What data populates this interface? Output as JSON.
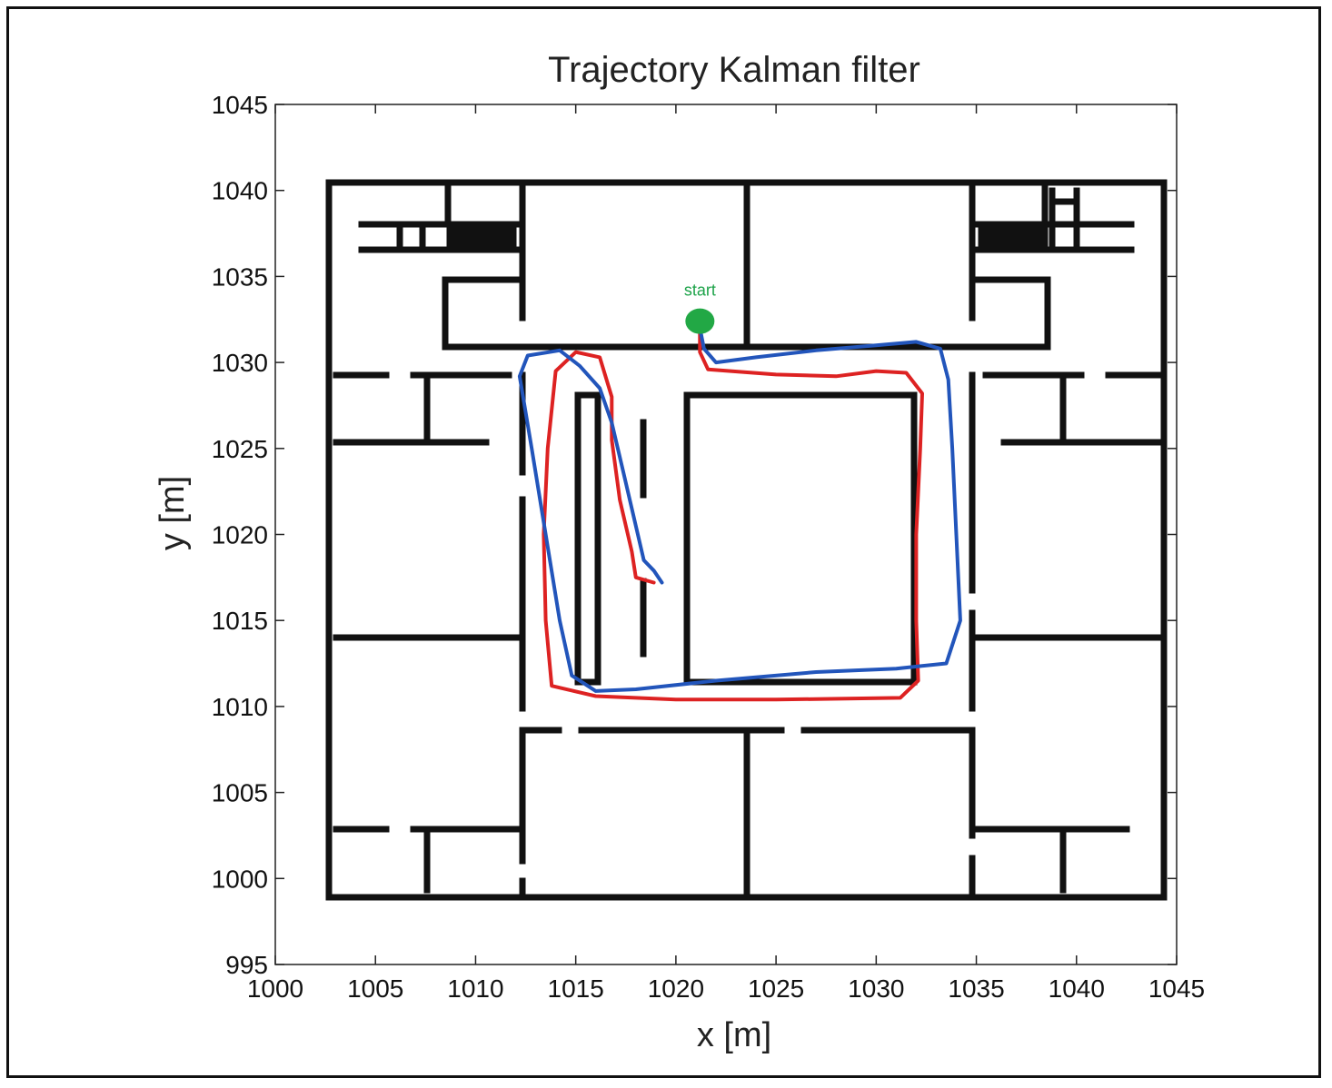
{
  "chart_data": {
    "type": "line",
    "title": "Trajectory Kalman filter",
    "xlabel": "x [m]",
    "ylabel": "y [m]",
    "xlim": [
      1000,
      1045
    ],
    "ylim": [
      995,
      1045
    ],
    "xticks": [
      1000,
      1005,
      1010,
      1015,
      1020,
      1025,
      1030,
      1035,
      1040,
      1045
    ],
    "yticks": [
      995,
      1000,
      1005,
      1010,
      1015,
      1020,
      1025,
      1030,
      1035,
      1040,
      1045
    ],
    "grid": false,
    "annotations": [
      {
        "text": "start",
        "x": 1021.2,
        "y": 1032.4
      }
    ],
    "start_point": {
      "x": 1021.2,
      "y": 1032.4,
      "color": "#22a845"
    },
    "series": [
      {
        "color": "#dd2222",
        "points": [
          [
            1021.2,
            1032.1
          ],
          [
            1021.2,
            1030.6
          ],
          [
            1021.6,
            1029.6
          ],
          [
            1025,
            1029.3
          ],
          [
            1028,
            1029.2
          ],
          [
            1030,
            1029.5
          ],
          [
            1031.5,
            1029.4
          ],
          [
            1032.3,
            1028.2
          ],
          [
            1032.2,
            1025
          ],
          [
            1032.0,
            1020
          ],
          [
            1032.0,
            1015
          ],
          [
            1032.1,
            1011.5
          ],
          [
            1031.2,
            1010.5
          ],
          [
            1025,
            1010.4
          ],
          [
            1020,
            1010.4
          ],
          [
            1016,
            1010.6
          ],
          [
            1013.8,
            1011.2
          ],
          [
            1013.5,
            1015
          ],
          [
            1013.4,
            1020
          ],
          [
            1013.6,
            1025
          ],
          [
            1014,
            1029.5
          ],
          [
            1015,
            1030.6
          ],
          [
            1016.2,
            1030.3
          ],
          [
            1016.8,
            1028.0
          ],
          [
            1016.8,
            1025.5
          ],
          [
            1017.2,
            1022
          ],
          [
            1017.8,
            1019
          ],
          [
            1018,
            1017.5
          ],
          [
            1018.9,
            1017.2
          ]
        ]
      },
      {
        "color": "#2255bb",
        "points": [
          [
            1021.2,
            1032.0
          ],
          [
            1021.4,
            1030.8
          ],
          [
            1022.0,
            1030.0
          ],
          [
            1024,
            1030.3
          ],
          [
            1027,
            1030.7
          ],
          [
            1030,
            1031.0
          ],
          [
            1032,
            1031.2
          ],
          [
            1033.2,
            1030.8
          ],
          [
            1033.6,
            1029
          ],
          [
            1033.8,
            1025
          ],
          [
            1034.0,
            1020
          ],
          [
            1034.2,
            1015
          ],
          [
            1033.5,
            1012.5
          ],
          [
            1031,
            1012.2
          ],
          [
            1027,
            1012.0
          ],
          [
            1022,
            1011.5
          ],
          [
            1018,
            1011
          ],
          [
            1016,
            1010.9
          ],
          [
            1014.8,
            1011.8
          ],
          [
            1014.2,
            1015
          ],
          [
            1013.5,
            1020
          ],
          [
            1012.8,
            1025
          ],
          [
            1012.2,
            1029.2
          ],
          [
            1012.6,
            1030.4
          ],
          [
            1014.2,
            1030.7
          ],
          [
            1015.2,
            1029.8
          ],
          [
            1016.2,
            1028.5
          ],
          [
            1016.8,
            1026.5
          ],
          [
            1017.4,
            1023.5
          ],
          [
            1017.9,
            1021
          ],
          [
            1018.4,
            1018.5
          ],
          [
            1018.9,
            1017.9
          ],
          [
            1019.3,
            1017.2
          ]
        ]
      }
    ]
  }
}
